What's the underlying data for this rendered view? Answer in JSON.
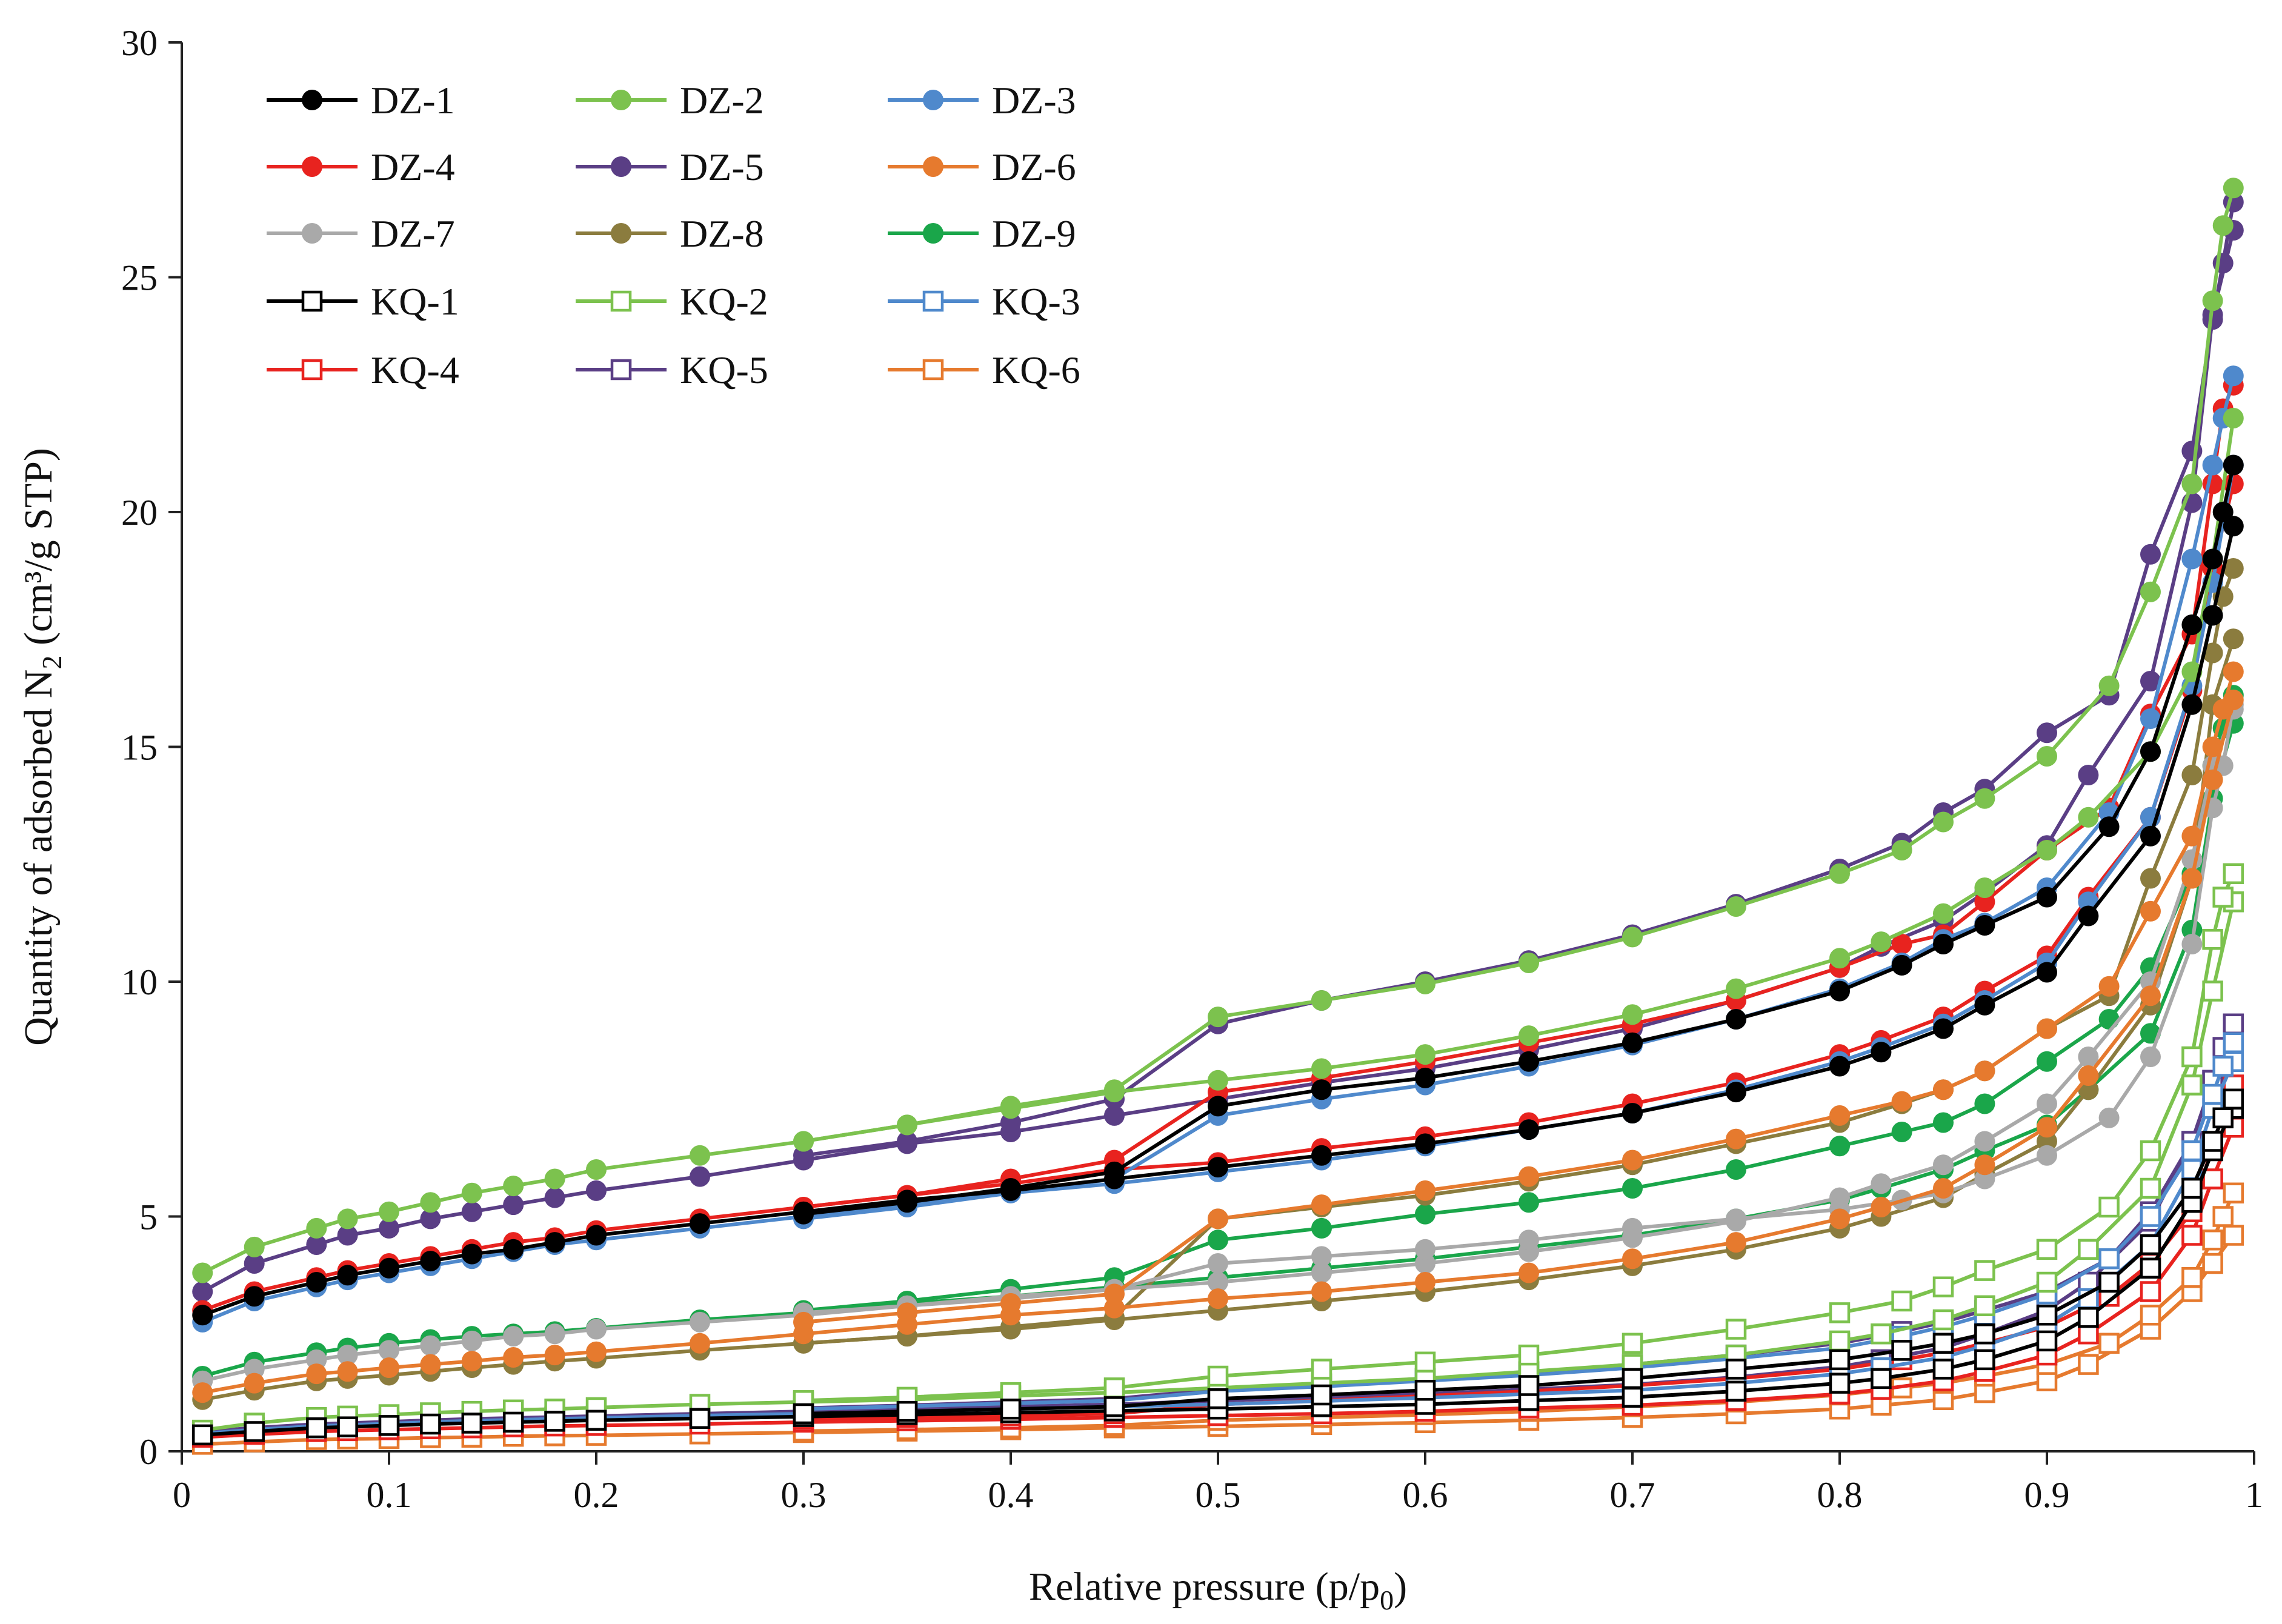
{
  "chart_data": {
    "type": "line",
    "title": "",
    "xlabel": "Relative pressure (p/p",
    "xlabel_sub": "0",
    "xlabel_end": ")",
    "ylabel": "Quantity of adsorbed N",
    "ylabel_sub": "2",
    "ylabel_end": " (cm³/g STP)",
    "xlim": [
      0,
      1
    ],
    "ylim": [
      0,
      30
    ],
    "x_ticks": [
      "0",
      "0.1",
      "0.2",
      "0.3",
      "0.4",
      "0.5",
      "0.6",
      "0.7",
      "0.8",
      "0.9",
      "1"
    ],
    "y_ticks": [
      "0",
      "5",
      "10",
      "15",
      "20",
      "25",
      "30"
    ],
    "grid": false,
    "legend_position": "top-left",
    "x_adsorption": [
      0.01,
      0.035,
      0.065,
      0.08,
      0.1,
      0.12,
      0.14,
      0.16,
      0.18,
      0.2,
      0.25,
      0.3,
      0.35,
      0.4,
      0.45,
      0.5,
      0.55,
      0.6,
      0.65,
      0.7,
      0.75,
      0.8,
      0.82,
      0.85,
      0.87,
      0.9,
      0.92,
      0.95,
      0.97,
      0.98,
      0.99
    ],
    "x_desorption": [
      0.99,
      0.985,
      0.98,
      0.97,
      0.95,
      0.93,
      0.9,
      0.87,
      0.85,
      0.83,
      0.8,
      0.75,
      0.7,
      0.65,
      0.6,
      0.55,
      0.5,
      0.45,
      0.4,
      0.35,
      0.3
    ],
    "series": [
      {
        "name": "DZ-1",
        "marker": "circle",
        "color": "#000000",
        "adsorption": [
          2.9,
          3.3,
          3.6,
          3.75,
          3.9,
          4.05,
          4.2,
          4.3,
          4.45,
          4.6,
          4.85,
          5.1,
          5.35,
          5.55,
          5.8,
          6.05,
          6.3,
          6.55,
          6.85,
          7.2,
          7.65,
          8.2,
          8.5,
          9.0,
          9.5,
          10.2,
          11.4,
          13.1,
          15.9,
          17.8,
          19.7
        ],
        "desorption": [
          21.0,
          20.0,
          19.0,
          17.6,
          14.9,
          13.3,
          11.8,
          11.2,
          10.8,
          10.35,
          9.8,
          9.2,
          8.7,
          8.3,
          7.95,
          7.7,
          7.35,
          5.95,
          5.6,
          5.3,
          5.05
        ]
      },
      {
        "name": "DZ-2",
        "marker": "circle",
        "color": "#7cc24e",
        "adsorption": [
          3.8,
          4.35,
          4.75,
          4.95,
          5.1,
          5.3,
          5.5,
          5.65,
          5.8,
          6.0,
          6.3,
          6.6,
          6.95,
          7.3,
          7.65,
          7.9,
          8.15,
          8.45,
          8.85,
          9.3,
          9.85,
          10.5,
          10.85,
          11.45,
          12.0,
          12.8,
          13.5,
          14.9,
          16.6,
          19.0,
          22.0
        ],
        "desorption": [
          26.9,
          26.1,
          24.5,
          20.6,
          18.3,
          16.3,
          14.8,
          13.9,
          13.4,
          12.8,
          12.3,
          11.6,
          10.95,
          10.4,
          9.95,
          9.6,
          9.25,
          7.7,
          7.35,
          6.95,
          6.6
        ]
      },
      {
        "name": "DZ-3",
        "marker": "circle",
        "color": "#4f89cc",
        "adsorption": [
          2.75,
          3.2,
          3.5,
          3.65,
          3.8,
          3.95,
          4.1,
          4.25,
          4.4,
          4.5,
          4.75,
          5.0,
          5.25,
          5.5,
          5.7,
          5.95,
          6.2,
          6.5,
          6.85,
          7.2,
          7.7,
          8.3,
          8.6,
          9.1,
          9.6,
          10.4,
          11.7,
          13.5,
          16.3,
          18.5,
          21.0
        ],
        "desorption": [
          22.9,
          22.0,
          21.0,
          19.0,
          15.6,
          13.6,
          12.0,
          11.25,
          10.9,
          10.4,
          9.85,
          9.2,
          8.65,
          8.2,
          7.8,
          7.5,
          7.15,
          5.8,
          5.5,
          5.2,
          4.95
        ]
      },
      {
        "name": "DZ-4",
        "marker": "circle",
        "color": "#e8231f",
        "adsorption": [
          3.0,
          3.4,
          3.7,
          3.85,
          4.0,
          4.15,
          4.3,
          4.45,
          4.55,
          4.7,
          4.95,
          5.2,
          5.45,
          5.7,
          6.0,
          6.15,
          6.45,
          6.7,
          7.0,
          7.4,
          7.85,
          8.45,
          8.75,
          9.25,
          9.8,
          10.55,
          11.8,
          13.5,
          16.2,
          18.8,
          20.6
        ],
        "desorption": [
          22.7,
          22.2,
          20.6,
          17.4,
          15.7,
          13.7,
          12.8,
          11.7,
          11.0,
          10.8,
          10.3,
          9.6,
          9.1,
          8.7,
          8.3,
          7.95,
          7.65,
          6.2,
          5.8,
          5.45,
          5.2
        ]
      },
      {
        "name": "DZ-5",
        "marker": "circle",
        "color": "#5a3e85",
        "adsorption": [
          3.4,
          4.0,
          4.4,
          4.6,
          4.75,
          4.95,
          5.1,
          5.25,
          5.4,
          5.55,
          5.85,
          6.2,
          6.55,
          6.8,
          7.15,
          7.5,
          7.85,
          8.15,
          8.55,
          9.0,
          9.6,
          10.3,
          10.75,
          11.3,
          11.9,
          12.9,
          14.4,
          16.4,
          20.2,
          24.2,
          26.0
        ],
        "desorption": [
          26.6,
          25.3,
          24.1,
          21.3,
          19.1,
          16.1,
          15.3,
          14.1,
          13.6,
          12.95,
          12.4,
          11.65,
          11.0,
          10.45,
          10.0,
          9.6,
          9.1,
          7.5,
          7.0,
          6.6,
          6.3
        ]
      },
      {
        "name": "DZ-6",
        "marker": "circle",
        "color": "#e67a2e",
        "adsorption": [
          1.25,
          1.45,
          1.65,
          1.7,
          1.78,
          1.85,
          1.92,
          2.0,
          2.05,
          2.12,
          2.3,
          2.5,
          2.7,
          2.9,
          3.05,
          3.25,
          3.4,
          3.6,
          3.8,
          4.1,
          4.45,
          4.95,
          5.2,
          5.6,
          6.1,
          6.9,
          8.0,
          9.7,
          12.2,
          14.3,
          16.0
        ],
        "desorption": [
          16.6,
          15.8,
          15.0,
          13.1,
          11.5,
          9.9,
          9.0,
          8.1,
          7.7,
          7.45,
          7.15,
          6.65,
          6.2,
          5.85,
          5.55,
          5.25,
          4.95,
          3.35,
          3.15,
          2.95,
          2.75
        ]
      },
      {
        "name": "DZ-7",
        "marker": "circle",
        "color": "#a9a9a9",
        "adsorption": [
          1.5,
          1.75,
          1.95,
          2.05,
          2.15,
          2.25,
          2.35,
          2.45,
          2.5,
          2.6,
          2.75,
          2.9,
          3.1,
          3.25,
          3.45,
          3.6,
          3.8,
          4.0,
          4.25,
          4.55,
          4.9,
          5.4,
          5.7,
          6.1,
          6.6,
          7.4,
          8.4,
          10.0,
          12.6,
          14.6,
          15.8
        ],
        "desorption": [
          15.9,
          14.6,
          13.7,
          10.8,
          8.4,
          7.1,
          6.3,
          5.8,
          5.5,
          5.35,
          5.15,
          4.95,
          4.75,
          4.5,
          4.3,
          4.15,
          4.0,
          3.45,
          3.3,
          3.1,
          2.95
        ]
      },
      {
        "name": "DZ-8",
        "marker": "circle",
        "color": "#8b7c3e",
        "adsorption": [
          1.1,
          1.3,
          1.5,
          1.55,
          1.62,
          1.7,
          1.78,
          1.85,
          1.92,
          1.98,
          2.15,
          2.3,
          2.45,
          2.6,
          2.8,
          3.0,
          3.2,
          3.4,
          3.65,
          3.95,
          4.3,
          4.75,
          5.0,
          5.4,
          5.9,
          6.6,
          7.7,
          9.5,
          12.2,
          15.9,
          17.3
        ],
        "desorption": [
          18.8,
          18.2,
          17.0,
          14.4,
          12.2,
          9.7,
          9.0,
          8.1,
          7.7,
          7.4,
          7.0,
          6.55,
          6.1,
          5.75,
          5.45,
          5.2,
          4.95,
          2.85,
          2.65,
          2.45,
          2.3
        ]
      },
      {
        "name": "DZ-9",
        "marker": "circle",
        "color": "#1aa64a",
        "adsorption": [
          1.6,
          1.9,
          2.1,
          2.2,
          2.3,
          2.38,
          2.45,
          2.5,
          2.55,
          2.62,
          2.8,
          2.95,
          3.15,
          3.3,
          3.5,
          3.7,
          3.9,
          4.1,
          4.35,
          4.6,
          4.95,
          5.35,
          5.6,
          6.0,
          6.4,
          6.95,
          7.7,
          8.9,
          11.1,
          13.9,
          15.5
        ],
        "desorption": [
          16.1,
          15.4,
          14.6,
          12.3,
          10.3,
          9.2,
          8.3,
          7.4,
          7.0,
          6.8,
          6.5,
          6.0,
          5.6,
          5.3,
          5.05,
          4.75,
          4.5,
          3.7,
          3.45,
          3.2,
          3.0
        ]
      },
      {
        "name": "KQ-1",
        "marker": "square",
        "color": "#000000",
        "adsorption": [
          0.35,
          0.42,
          0.5,
          0.52,
          0.55,
          0.58,
          0.6,
          0.62,
          0.64,
          0.66,
          0.7,
          0.74,
          0.78,
          0.82,
          0.86,
          0.9,
          0.95,
          1.0,
          1.08,
          1.15,
          1.28,
          1.45,
          1.55,
          1.75,
          1.95,
          2.35,
          2.85,
          3.9,
          5.3,
          6.4,
          7.3
        ],
        "desorption": [
          7.5,
          7.1,
          6.6,
          5.6,
          4.4,
          3.6,
          2.9,
          2.5,
          2.3,
          2.15,
          1.95,
          1.75,
          1.55,
          1.4,
          1.3,
          1.2,
          1.12,
          0.95,
          0.9,
          0.85,
          0.8
        ]
      },
      {
        "name": "KQ-2",
        "marker": "square",
        "color": "#7cc24e",
        "adsorption": [
          0.45,
          0.6,
          0.72,
          0.75,
          0.78,
          0.82,
          0.85,
          0.88,
          0.9,
          0.93,
          1.0,
          1.05,
          1.1,
          1.18,
          1.25,
          1.35,
          1.45,
          1.55,
          1.7,
          1.85,
          2.05,
          2.35,
          2.5,
          2.8,
          3.1,
          3.6,
          4.3,
          5.6,
          7.8,
          9.8,
          11.7
        ],
        "desorption": [
          12.3,
          11.8,
          10.9,
          8.4,
          6.4,
          5.2,
          4.3,
          3.85,
          3.5,
          3.2,
          2.95,
          2.6,
          2.3,
          2.05,
          1.9,
          1.75,
          1.6,
          1.35,
          1.25,
          1.15,
          1.08
        ]
      },
      {
        "name": "KQ-3",
        "marker": "square",
        "color": "#4f89cc",
        "adsorption": [
          0.38,
          0.46,
          0.54,
          0.56,
          0.59,
          0.62,
          0.65,
          0.67,
          0.69,
          0.71,
          0.76,
          0.8,
          0.85,
          0.9,
          0.95,
          1.0,
          1.07,
          1.14,
          1.22,
          1.3,
          1.45,
          1.65,
          1.78,
          2.0,
          2.25,
          2.7,
          3.25,
          4.4,
          6.0,
          7.3,
          8.3
        ],
        "desorption": [
          8.7,
          8.2,
          7.6,
          6.4,
          5.0,
          4.1,
          3.35,
          2.9,
          2.65,
          2.45,
          2.2,
          1.98,
          1.78,
          1.62,
          1.5,
          1.38,
          1.28,
          1.08,
          1.02,
          0.96,
          0.9
        ]
      },
      {
        "name": "KQ-4",
        "marker": "square",
        "color": "#e8231f",
        "adsorption": [
          0.3,
          0.36,
          0.42,
          0.44,
          0.46,
          0.48,
          0.5,
          0.52,
          0.54,
          0.55,
          0.58,
          0.62,
          0.65,
          0.68,
          0.72,
          0.76,
          0.8,
          0.85,
          0.92,
          0.98,
          1.08,
          1.22,
          1.32,
          1.5,
          1.7,
          2.05,
          2.5,
          3.4,
          4.6,
          5.8,
          6.9
        ],
        "desorption": [
          7.8,
          7.2,
          6.5,
          5.1,
          4.0,
          3.3,
          2.65,
          2.3,
          2.1,
          1.95,
          1.75,
          1.55,
          1.4,
          1.28,
          1.18,
          1.08,
          1.0,
          0.8,
          0.75,
          0.72,
          0.68
        ]
      },
      {
        "name": "KQ-5",
        "marker": "square",
        "color": "#5a3e85",
        "adsorption": [
          0.42,
          0.5,
          0.58,
          0.6,
          0.63,
          0.66,
          0.69,
          0.71,
          0.73,
          0.75,
          0.8,
          0.85,
          0.9,
          0.95,
          1.0,
          1.08,
          1.15,
          1.22,
          1.32,
          1.42,
          1.58,
          1.8,
          1.95,
          2.2,
          2.5,
          3.0,
          3.6,
          4.9,
          6.6,
          7.9,
          8.8
        ],
        "desorption": [
          9.1,
          8.6,
          7.9,
          6.6,
          5.1,
          4.1,
          3.4,
          3.0,
          2.75,
          2.55,
          2.3,
          2.05,
          1.85,
          1.68,
          1.55,
          1.43,
          1.32,
          1.12,
          1.05,
          0.98,
          0.92
        ]
      },
      {
        "name": "KQ-6",
        "marker": "square",
        "color": "#e67a2e",
        "adsorption": [
          0.15,
          0.2,
          0.25,
          0.26,
          0.27,
          0.29,
          0.3,
          0.32,
          0.33,
          0.34,
          0.37,
          0.4,
          0.43,
          0.46,
          0.5,
          0.53,
          0.57,
          0.61,
          0.66,
          0.72,
          0.8,
          0.9,
          0.98,
          1.1,
          1.25,
          1.5,
          1.85,
          2.6,
          3.4,
          4.0,
          4.6
        ],
        "desorption": [
          5.5,
          5.0,
          4.5,
          3.7,
          2.9,
          2.3,
          1.85,
          1.6,
          1.45,
          1.35,
          1.2,
          1.05,
          0.95,
          0.85,
          0.78,
          0.72,
          0.66,
          0.55,
          0.5,
          0.46,
          0.43
        ]
      }
    ]
  }
}
